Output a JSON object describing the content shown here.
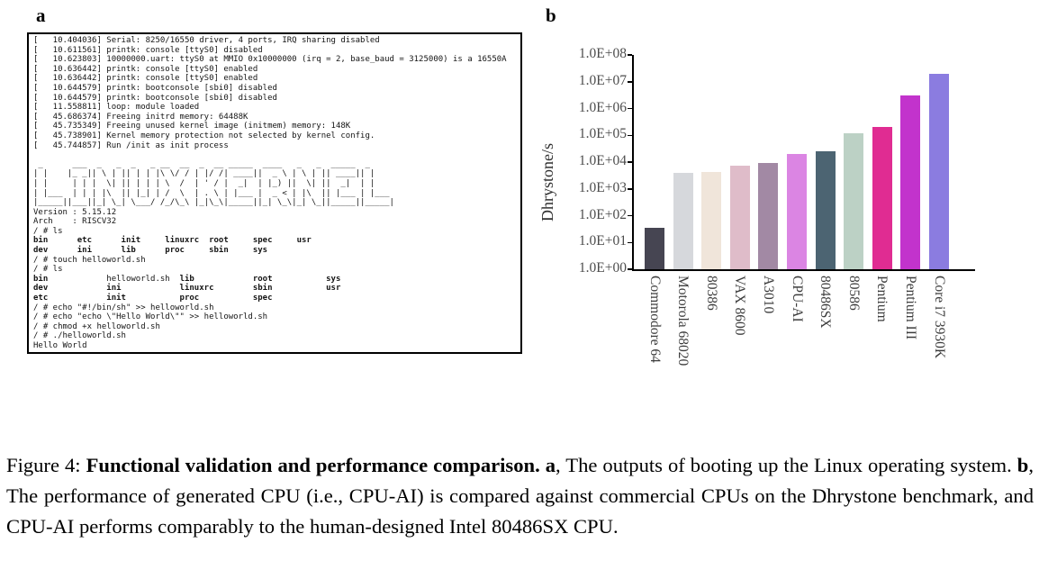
{
  "panels": {
    "a_label": "a",
    "b_label": "b"
  },
  "terminal": {
    "lines": [
      "[   10.404036] Serial: 8250/16550 driver, 4 ports, IRQ sharing disabled",
      "[   10.611561] printk: console [ttyS0] disabled",
      "[   10.623803] 10000000.uart: ttyS0 at MMIO 0x10000000 (irq = 2, base_baud = 3125000) is a 16550A",
      "[   10.636442] printk: console [ttyS0] enabled",
      "[   10.636442] printk: console [ttyS0] enabled",
      "[   10.644579] printk: bootconsole [sbi0] disabled",
      "[   10.644579] printk: bootconsole [sbi0] disabled",
      "[   11.558811] loop: module loaded",
      "[   45.686374] Freeing initrd memory: 64488K",
      "[   45.735349] Freeing unused kernel image (initmem) memory: 148K",
      "[   45.738901] Kernel memory protection not selected by kernel config.",
      "[   45.744857] Run /init as init process",
      "",
      " _      ___  _   _  _   _ __  __  _  __ _____  ____   _   _  _____  _     ",
      "| |    |_ _|| \\ | || | | |\\ \\/ / | |/ /| ____||  _ \\ | \\ | || ____|| |    ",
      "| |     | | |  \\| || | | | \\  /  | ' / |  _|  | |_) ||  \\| ||  _|  | |    ",
      "| |___  | | | |\\  || |_| | /  \\  | . \\ | |___ |  _ < | |\\  || |___ | |___ ",
      "|_____||___||_| \\_| \\___/ /_/\\_\\ |_|\\_\\|_____||_| \\_\\|_| \\_||_____||_____|",
      "Version : 5.15.12",
      "Arch    : RISCV32",
      "/ # ls",
      [
        {
          "t": "bin      etc      init     linuxrc  root     spec     usr",
          "b": true
        }
      ],
      [
        {
          "t": "dev      ini      lib      proc     sbin     sys",
          "b": true
        }
      ],
      "/ # touch helloworld.sh",
      "/ # ls",
      [
        {
          "t": "bin            ",
          "b": true
        },
        {
          "t": "helloworld.sh  ",
          "b": false
        },
        {
          "t": "lib            root           sys",
          "b": true
        }
      ],
      [
        {
          "t": "dev            ini            linuxrc        sbin           usr",
          "b": true
        }
      ],
      [
        {
          "t": "etc            init           proc           spec",
          "b": true
        }
      ],
      "/ # echo \"#!/bin/sh\" >> helloworld.sh",
      "/ # echo \"echo \\\"Hello World\\\"\" >> helloworld.sh",
      "/ # chmod +x helloworld.sh",
      "/ # ./helloworld.sh",
      "Hello World"
    ]
  },
  "chart_data": {
    "type": "bar",
    "title": "",
    "xlabel": "",
    "ylabel": "Dhrystone/s",
    "yscale": "log",
    "ylim": [
      1,
      100000000
    ],
    "grid": false,
    "legend": "none",
    "ytick_labels": [
      "1.0E+00",
      "1.0E+01",
      "1.0E+02",
      "1.0E+03",
      "1.0E+04",
      "1.0E+05",
      "1.0E+06",
      "1.0E+07",
      "1.0E+08"
    ],
    "categories": [
      "Commodore 64",
      "Motorola 68020",
      "80386",
      "VAX 8600",
      "A3010",
      "CPU-AI",
      "80486SX",
      "80586",
      "Pentium",
      "Pentium III",
      "Core i7 3930K"
    ],
    "values": [
      35,
      4000,
      4300,
      7500,
      9500,
      20000,
      25000,
      120000,
      210000,
      3000000,
      20000000
    ],
    "bar_colors": [
      "#464552",
      "#d6d8dc",
      "#f0e5da",
      "#dfbcc9",
      "#a289a4",
      "#db85e3",
      "#4c6472",
      "#bcd1c5",
      "#e02c92",
      "#c233cc",
      "#8b7ce0"
    ]
  },
  "caption": {
    "segments": [
      {
        "t": "Figure 4: ",
        "b": false
      },
      {
        "t": "Functional validation and performance comparison.",
        "b": true
      },
      {
        "t": " ",
        "b": false
      },
      {
        "t": "a",
        "b": true
      },
      {
        "t": ", The outputs of booting up the Linux operating system. ",
        "b": false
      },
      {
        "t": "b",
        "b": true
      },
      {
        "t": ", The performance of generated CPU (i.e., CPU-AI) is compared against commercial CPUs on the Dhrystone benchmark, and CPU-AI performs comparably to the human-designed Intel 80486SX CPU.",
        "b": false
      }
    ]
  }
}
